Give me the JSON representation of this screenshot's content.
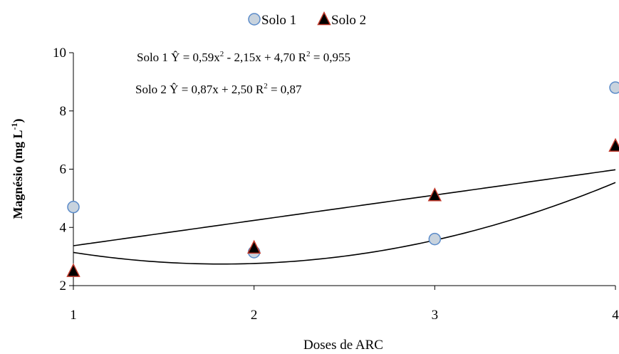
{
  "chart_data": {
    "type": "scatter",
    "x": [
      1,
      2,
      3,
      4
    ],
    "xlabel": "Doses de ARC",
    "ylabel_main": "Magnésio (mg L",
    "ylabel_sup": "-1",
    "ylabel_close": ")",
    "xlim": [
      1,
      4
    ],
    "ylim": [
      2,
      10
    ],
    "xticks": [
      "1",
      "2",
      "3",
      "4"
    ],
    "yticks": [
      "2",
      "4",
      "6",
      "8",
      "10"
    ],
    "legend_position": "top-center",
    "grid": false,
    "series": [
      {
        "name": "Solo 1",
        "marker": "circle",
        "fill": "#c8d3de",
        "stroke": "#5b8bc9",
        "values": [
          4.7,
          3.15,
          3.6,
          8.8
        ],
        "trend": {
          "type": "quadratic",
          "a": 0.59,
          "b": -2.15,
          "c": 4.7
        }
      },
      {
        "name": "Solo 2",
        "marker": "triangle",
        "fill": "#000000",
        "stroke": "#c0392b",
        "values": [
          2.5,
          3.3,
          5.1,
          6.8
        ],
        "trend": {
          "type": "linear",
          "a": 0.87,
          "b": 2.5
        }
      }
    ],
    "equations": [
      {
        "before": "Solo 1 Ŷ = 0,59x",
        "sup": "2",
        "after": " - 2,15x + 4,70  R",
        "sup2": "2",
        "tail": " = 0,955"
      },
      {
        "before": "Solo 2 Ŷ = 0,87x + 2,50 R",
        "sup": "2",
        "after": " = 0,87",
        "sup2": "",
        "tail": ""
      }
    ]
  }
}
